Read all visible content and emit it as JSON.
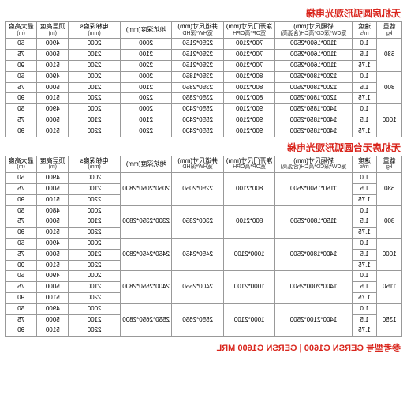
{
  "section1": {
    "title": "无机房圆弧形观光电梯",
    "headers": {
      "h1": {
        "l1": "载重",
        "l2": "kg"
      },
      "h2": {
        "l1": "速度",
        "l2": "m/s"
      },
      "h3": {
        "l1": "轿厢尺寸(mm)",
        "l2": "宽CW*深CD*高CH(含弧高)"
      },
      "h4": {
        "l1": "净开门尺寸(mm)",
        "l2": "宽OP*高OPH"
      },
      "h5": {
        "l1": "井道尺寸(mm)",
        "l2": "宽HW*深HD"
      },
      "h6": {
        "l1": "地坑深度(mm)",
        "l2": ""
      },
      "h7": {
        "l1": "电梯深度s",
        "l2": "(mm)"
      },
      "h8": {
        "l1": "顶层高度",
        "l2": "(m)"
      },
      "h9": {
        "l1": "最大高度",
        "l2": "(m)"
      }
    },
    "groups": [
      {
        "load": "630",
        "rows": [
          {
            "spd": "1.0",
            "car": "1100*1600*2500",
            "door": "700*2100",
            "shaft": "2250*2150",
            "pit": "2000",
            "s": "2000",
            "th": "4900",
            "mh": "50"
          },
          {
            "spd": "1.5",
            "car": "1100*1600*2500",
            "door": "700*2100",
            "shaft": "2250*2150",
            "pit": "2100",
            "s": "2100",
            "th": "5000",
            "mh": "75"
          },
          {
            "spd": "1.75",
            "car": "1100*1600*2500",
            "door": "700*2100",
            "shaft": "2250*2150",
            "pit": "2200",
            "s": "2200",
            "th": "5100",
            "mh": "90"
          }
        ]
      },
      {
        "load": "800",
        "rows": [
          {
            "spd": "1.0",
            "car": "1200*1800*2500",
            "door": "800*2100",
            "shaft": "2350*1850",
            "pit": "2000",
            "s": "2000",
            "th": "4900",
            "mh": "50"
          },
          {
            "spd": "1.5",
            "car": "1200*1800*2500",
            "door": "800*2100",
            "shaft": "2350*2350",
            "pit": "2100",
            "s": "2100",
            "th": "5000",
            "mh": "75"
          },
          {
            "spd": "1.75",
            "car": "1200*1800*2500",
            "door": "800*2100",
            "shaft": "2350*2350",
            "pit": "2200",
            "s": "2200",
            "th": "5100",
            "mh": "90"
          }
        ]
      },
      {
        "load": "1000",
        "rows": [
          {
            "spd": "1.0",
            "car": "1400*1850*2500",
            "door": "900*2100",
            "shaft": "2550*2400",
            "pit": "2000",
            "s": "2000",
            "th": "4900",
            "mh": "50"
          },
          {
            "spd": "1.5",
            "car": "1400*1850*2500",
            "door": "900*2100",
            "shaft": "2550*2400",
            "pit": "2100",
            "s": "2100",
            "th": "5000",
            "mh": "75"
          },
          {
            "spd": "1.75",
            "car": "1400*1850*2500",
            "door": "900*2100",
            "shaft": "2550*2400",
            "pit": "2200",
            "s": "2200",
            "th": "5100",
            "mh": "90"
          }
        ]
      }
    ]
  },
  "section2": {
    "title": "无机房无台圆弧形观光电梯",
    "headers": {
      "h1": {
        "l1": "载重",
        "l2": "kg"
      },
      "h2": {
        "l1": "速度",
        "l2": "m/s"
      },
      "h3": {
        "l1": "轿厢尺寸(mm)",
        "l2": "宽CW*深CD*高CH(含弧高)"
      },
      "h4": {
        "l1": "净开门尺寸(mm)",
        "l2": "宽OP*高OPH"
      },
      "h5": {
        "l1": "井道尺寸(mm)",
        "l2": "宽HW*深HD"
      },
      "h6": {
        "l1": "地坑深度(mm)",
        "l2": ""
      },
      "h7": {
        "l1": "电梯深度s",
        "l2": "(mm)"
      },
      "h8": {
        "l1": "顶层高度",
        "l2": "(m)"
      },
      "h9": {
        "l1": "最大高度",
        "l2": "(m)"
      }
    },
    "groups": [
      {
        "load": "630",
        "rows": [
          {
            "spd": "1.0",
            "car": "1150*1500*2500",
            "door": "800*2100",
            "shaft": "2250*2050",
            "shaft2": "2050*2050*2800",
            "pit": "2000",
            "th": "4900",
            "mh": "50"
          },
          {
            "spd": "1.5",
            "car": "",
            "door": "",
            "shaft": "",
            "shaft2": "",
            "pit": "2100",
            "th": "5000",
            "mh": "75"
          },
          {
            "spd": "1.75",
            "car": "",
            "door": "",
            "shaft": "",
            "shaft2": "",
            "pit": "2200",
            "th": "5100",
            "mh": "90"
          }
        ]
      },
      {
        "load": "800",
        "rows": [
          {
            "spd": "1.0",
            "car": "1150*1800*2500",
            "door": "800*2100",
            "shaft": "2300*2350",
            "shaft2": "2300*2350*2800",
            "pit": "2000",
            "th": "4800",
            "mh": "50"
          },
          {
            "spd": "1.5",
            "car": "",
            "door": "",
            "shaft": "",
            "shaft2": "",
            "pit": "2100",
            "th": "5000",
            "mh": "75"
          },
          {
            "spd": "1.75",
            "car": "",
            "door": "",
            "shaft": "",
            "shaft2": "",
            "pit": "2200",
            "th": "5100",
            "mh": "90"
          }
        ]
      },
      {
        "load": "1000",
        "rows": [
          {
            "spd": "1.0",
            "car": "1400*1800*2500",
            "door": "1000*2100",
            "shaft": "2450*2450",
            "shaft2": "2450*2450*2800",
            "pit": "2000",
            "th": "4900",
            "mh": "50"
          },
          {
            "spd": "1.5",
            "car": "",
            "door": "",
            "shaft": "",
            "shaft2": "",
            "pit": "2100",
            "th": "5000",
            "mh": "75"
          },
          {
            "spd": "1.75",
            "car": "",
            "door": "",
            "shaft": "",
            "shaft2": "",
            "pit": "2200",
            "th": "5100",
            "mh": "90"
          }
        ]
      },
      {
        "load": "1150",
        "rows": [
          {
            "spd": "1.0",
            "car": "1400*2000*2500",
            "door": "1000*2100",
            "shaft": "2400*2550",
            "shaft2": "2400*2550*2800",
            "pit": "2000",
            "th": "4900",
            "mh": "50"
          },
          {
            "spd": "1.5",
            "car": "",
            "door": "",
            "shaft": "",
            "shaft2": "",
            "pit": "2100",
            "th": "5000",
            "mh": "75"
          },
          {
            "spd": "1.75",
            "car": "",
            "door": "",
            "shaft": "",
            "shaft2": "",
            "pit": "2200",
            "th": "5100",
            "mh": "90"
          }
        ]
      },
      {
        "load": "1350",
        "rows": [
          {
            "spd": "1.0",
            "car": "1400*2100*2500",
            "door": "1000*2100",
            "shaft": "2550*2650",
            "shaft2": "2550*2650*2800",
            "pit": "2000",
            "th": "4900",
            "mh": "50"
          },
          {
            "spd": "1.5",
            "car": "",
            "door": "",
            "shaft": "",
            "shaft2": "",
            "pit": "2100",
            "th": "5000",
            "mh": "75"
          },
          {
            "spd": "1.75",
            "car": "",
            "door": "",
            "shaft": "",
            "shaft2": "",
            "pit": "2200",
            "th": "5100",
            "mh": "90"
          }
        ]
      }
    ]
  },
  "model_line": "参考型号 GERSN G1600 | GERSN G1600 MRL"
}
